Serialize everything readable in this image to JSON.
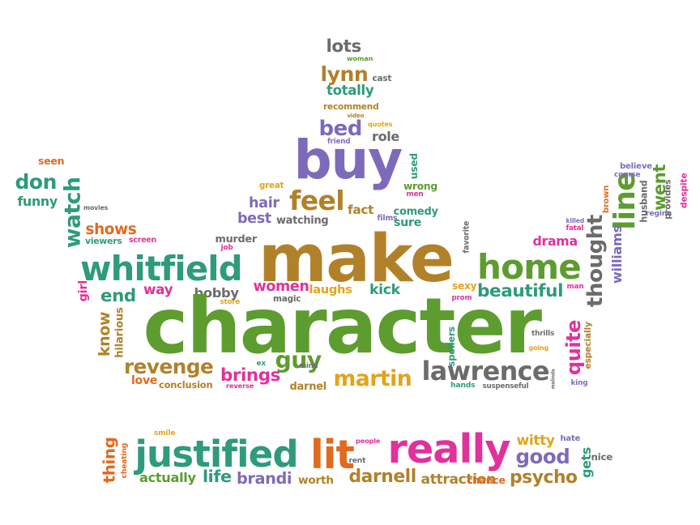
{
  "colors": {
    "purple": "#7d6bb9",
    "brown": "#b1812a",
    "green": "#5d9c2f",
    "teal": "#2e9b7a",
    "gray": "#6b6b6b",
    "pink": "#e0319c",
    "orange": "#e06a1f",
    "gold": "#e3a31a"
  },
  "words": [
    {
      "text": "lots",
      "color": "gray"
    },
    {
      "text": "woman",
      "color": "green"
    },
    {
      "text": "lynn",
      "color": "brown"
    },
    {
      "text": "cast",
      "color": "gray"
    },
    {
      "text": "totally",
      "color": "teal"
    },
    {
      "text": "recommend",
      "color": "brown"
    },
    {
      "text": "video",
      "color": "brown"
    },
    {
      "text": "bed",
      "color": "purple"
    },
    {
      "text": "quotes",
      "color": "gold"
    },
    {
      "text": "role",
      "color": "gray"
    },
    {
      "text": "friend",
      "color": "purple"
    },
    {
      "text": "buy",
      "color": "purple"
    },
    {
      "text": "used",
      "color": "teal"
    },
    {
      "text": "seen",
      "color": "orange"
    },
    {
      "text": "don",
      "color": "teal"
    },
    {
      "text": "funny",
      "color": "teal"
    },
    {
      "text": "watch",
      "color": "teal"
    },
    {
      "text": "movies",
      "color": "gray"
    },
    {
      "text": "great",
      "color": "gold"
    },
    {
      "text": "wrong",
      "color": "green"
    },
    {
      "text": "men",
      "color": "pink"
    },
    {
      "text": "hair",
      "color": "purple"
    },
    {
      "text": "feel",
      "color": "brown"
    },
    {
      "text": "fact",
      "color": "brown"
    },
    {
      "text": "comedy",
      "color": "teal"
    },
    {
      "text": "shows",
      "color": "orange"
    },
    {
      "text": "viewers",
      "color": "teal"
    },
    {
      "text": "screen",
      "color": "pink"
    },
    {
      "text": "best",
      "color": "purple"
    },
    {
      "text": "watching",
      "color": "gray"
    },
    {
      "text": "films",
      "color": "purple"
    },
    {
      "text": "sure",
      "color": "teal"
    },
    {
      "text": "murder",
      "color": "gray"
    },
    {
      "text": "job",
      "color": "pink"
    },
    {
      "text": "whitfield",
      "color": "teal"
    },
    {
      "text": "make",
      "color": "brown"
    },
    {
      "text": "favorite",
      "color": "gray"
    },
    {
      "text": "home",
      "color": "green"
    },
    {
      "text": "drama",
      "color": "pink"
    },
    {
      "text": "killed",
      "color": "purple"
    },
    {
      "text": "fatal",
      "color": "pink"
    },
    {
      "text": "thought",
      "color": "gray"
    },
    {
      "text": "line",
      "color": "green"
    },
    {
      "text": "williams",
      "color": "purple"
    },
    {
      "text": "believe",
      "color": "purple"
    },
    {
      "text": "course",
      "color": "purple"
    },
    {
      "text": "brown",
      "color": "orange"
    },
    {
      "text": "went",
      "color": "green"
    },
    {
      "text": "husband",
      "color": "gray"
    },
    {
      "text": "regina",
      "color": "purple"
    },
    {
      "text": "provides",
      "color": "gray"
    },
    {
      "text": "despite",
      "color": "pink"
    },
    {
      "text": "girl",
      "color": "pink"
    },
    {
      "text": "end",
      "color": "teal"
    },
    {
      "text": "way",
      "color": "pink"
    },
    {
      "text": "bobby",
      "color": "gray"
    },
    {
      "text": "women",
      "color": "pink"
    },
    {
      "text": "laughs",
      "color": "gold"
    },
    {
      "text": "kick",
      "color": "teal"
    },
    {
      "text": "sexy",
      "color": "gold"
    },
    {
      "text": "beautiful",
      "color": "teal"
    },
    {
      "text": "man",
      "color": "pink"
    },
    {
      "text": "store",
      "color": "gold"
    },
    {
      "text": "magic",
      "color": "gray"
    },
    {
      "text": "prom",
      "color": "pink"
    },
    {
      "text": "character",
      "color": "green"
    },
    {
      "text": "know",
      "color": "brown"
    },
    {
      "text": "hilarious",
      "color": "brown"
    },
    {
      "text": "quite",
      "color": "pink"
    },
    {
      "text": "especially",
      "color": "brown"
    },
    {
      "text": "thrills",
      "color": "gray"
    },
    {
      "text": "going",
      "color": "gold"
    },
    {
      "text": "revenge",
      "color": "brown"
    },
    {
      "text": "guy",
      "color": "green"
    },
    {
      "text": "ex",
      "color": "teal"
    },
    {
      "text": "mind",
      "color": "gray"
    },
    {
      "text": "brings",
      "color": "pink"
    },
    {
      "text": "spoilers",
      "color": "teal"
    },
    {
      "text": "lawrence",
      "color": "gray"
    },
    {
      "text": "martin",
      "color": "gold"
    },
    {
      "text": "love",
      "color": "orange"
    },
    {
      "text": "conclusion",
      "color": "brown"
    },
    {
      "text": "reverse",
      "color": "pink"
    },
    {
      "text": "darnel",
      "color": "brown"
    },
    {
      "text": "hands",
      "color": "teal"
    },
    {
      "text": "suspenseful",
      "color": "gray"
    },
    {
      "text": "malinda",
      "color": "gray"
    },
    {
      "text": "king",
      "color": "purple"
    },
    {
      "text": "smile",
      "color": "gold"
    },
    {
      "text": "people",
      "color": "pink"
    },
    {
      "text": "witty",
      "color": "gold"
    },
    {
      "text": "hate",
      "color": "purple"
    },
    {
      "text": "thing",
      "color": "orange"
    },
    {
      "text": "cheating",
      "color": "orange"
    },
    {
      "text": "justified",
      "color": "teal"
    },
    {
      "text": "lit",
      "color": "orange"
    },
    {
      "text": "rent",
      "color": "gray"
    },
    {
      "text": "really",
      "color": "pink"
    },
    {
      "text": "good",
      "color": "purple"
    },
    {
      "text": "gets",
      "color": "teal"
    },
    {
      "text": "nice",
      "color": "gray"
    },
    {
      "text": "actually",
      "color": "green"
    },
    {
      "text": "life",
      "color": "teal"
    },
    {
      "text": "brandi",
      "color": "purple"
    },
    {
      "text": "worth",
      "color": "brown"
    },
    {
      "text": "darnell",
      "color": "brown"
    },
    {
      "text": "attraction",
      "color": "brown"
    },
    {
      "text": "chance",
      "color": "orange"
    },
    {
      "text": "psycho",
      "color": "brown"
    }
  ]
}
